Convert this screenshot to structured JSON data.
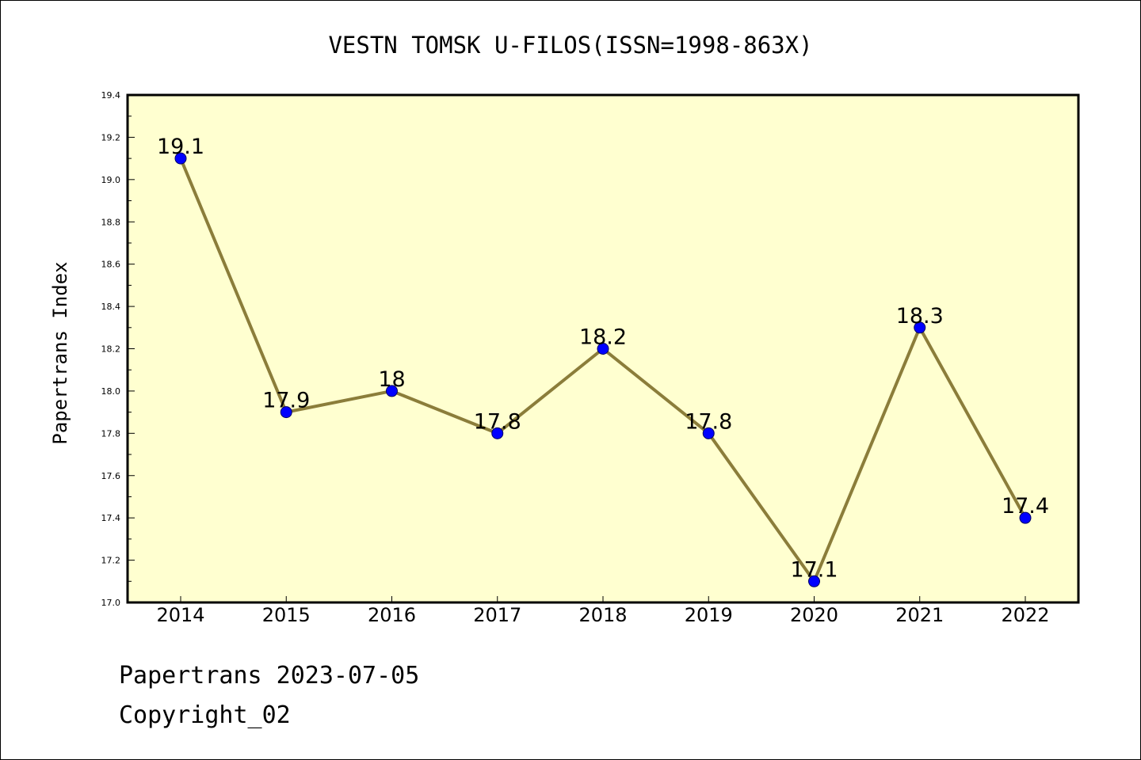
{
  "chart_data": {
    "type": "line",
    "title": "VESTN TOMSK U-FILOS(ISSN=1998-863X)",
    "ylabel": "Papertrans Index",
    "xlabel": "",
    "categories": [
      "2014",
      "2015",
      "2016",
      "2017",
      "2018",
      "2019",
      "2020",
      "2021",
      "2022"
    ],
    "values": [
      19.1,
      17.9,
      18.0,
      17.8,
      18.2,
      17.8,
      17.1,
      18.3,
      17.4
    ],
    "data_labels": [
      "19.1",
      "17.9",
      "18",
      "17.8",
      "18.2",
      "17.8",
      "17.1",
      "18.3",
      "17.4"
    ],
    "ylim": [
      17.0,
      19.4
    ],
    "yticks": [
      "17.0",
      "17.2",
      "17.4",
      "17.6",
      "17.8",
      "18.0",
      "18.2",
      "18.4",
      "18.6",
      "18.8",
      "19.0",
      "19.2",
      "19.4"
    ],
    "grid": false,
    "colors": {
      "plot_background": "#ffffd0",
      "line": "#8b7d3a",
      "marker": "#0000ff"
    }
  },
  "footer": {
    "source_date": "Papertrans 2023-07-05",
    "copyright": "Copyright_02"
  }
}
